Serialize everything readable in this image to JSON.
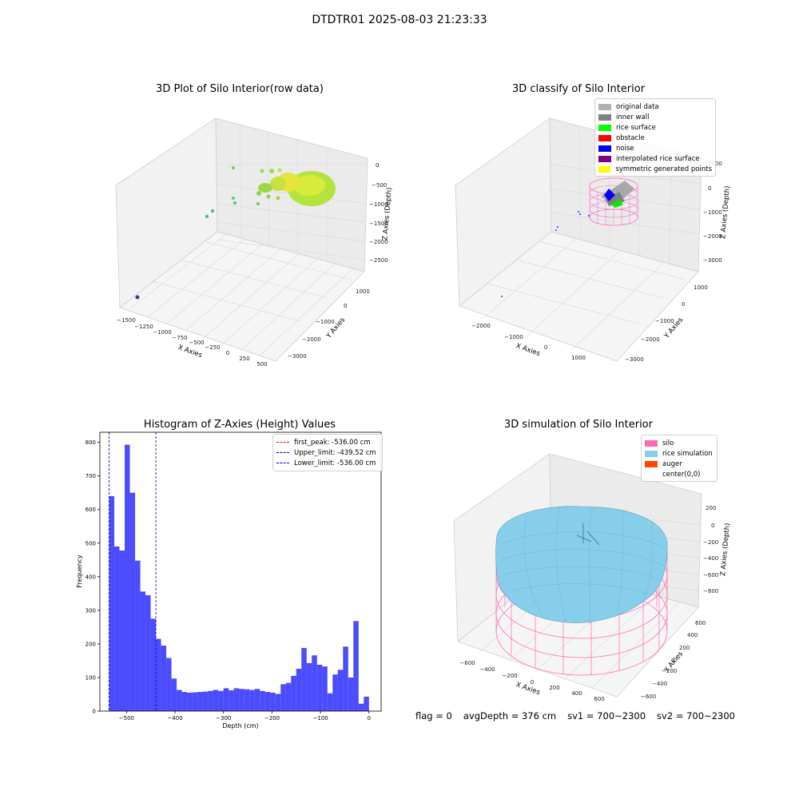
{
  "figure": {
    "title": "DTDTR01 2025-08-03 21:23:33"
  },
  "panels": {
    "raw": {
      "title": "3D Plot of Silo Interior(row data)",
      "xlabel": "X Axies",
      "ylabel": "Y Axies",
      "zlabel": "Z Axies (Depth)",
      "x_ticks": [
        "−1500",
        "−1250",
        "−1000",
        "−750",
        "−500",
        "−250",
        "0",
        "250",
        "500"
      ],
      "y_ticks": [
        "1000",
        "0",
        "−1000",
        "−2000",
        "−3000"
      ],
      "z_ticks": [
        "0",
        "−500",
        "−1000",
        "−1500",
        "−2000",
        "−2500"
      ]
    },
    "classify": {
      "title": "3D classify of Silo Interior",
      "xlabel": "X Axies",
      "ylabel": "Y Axies",
      "zlabel": "Z Axies (Depth)",
      "x_ticks": [
        "−2000",
        "−1000",
        "0",
        "1000"
      ],
      "y_ticks": [
        "1000",
        "0",
        "−1000",
        "−2000",
        "−3000"
      ],
      "z_ticks": [
        "1000",
        "0",
        "−1000",
        "−2000",
        "−3000"
      ],
      "legend": [
        {
          "label": "original data",
          "color": "#b0b0b0"
        },
        {
          "label": "inner wall",
          "color": "#808080"
        },
        {
          "label": "rice surface",
          "color": "#00ff00"
        },
        {
          "label": "obstacle",
          "color": "#ff0000"
        },
        {
          "label": "noise",
          "color": "#0000ff"
        },
        {
          "label": "interpolated rice surface",
          "color": "#800080"
        },
        {
          "label": "symmetric generated points",
          "color": "#ffff00"
        }
      ]
    },
    "simulation": {
      "title": "3D simulation of Silo Interior",
      "xlabel": "X Axies",
      "ylabel": "Y Axies",
      "zlabel": "Z Axies (Depth)",
      "x_ticks": [
        "−600",
        "−400",
        "−200",
        "0",
        "200",
        "400",
        "600"
      ],
      "y_ticks": [
        "600",
        "400",
        "200",
        "0",
        "−200",
        "−400",
        "−600"
      ],
      "z_ticks": [
        "200",
        "0",
        "−200",
        "−400",
        "−600",
        "−800"
      ],
      "legend": [
        {
          "label": "silo",
          "color": "#ff69b4"
        },
        {
          "label": "rice simulation",
          "color": "#87ceeb"
        },
        {
          "label": "auger",
          "color": "#ff4500"
        },
        {
          "label": "center(0,0)",
          "color": ""
        }
      ]
    }
  },
  "footer": {
    "flag": "flag = 0",
    "avg_depth": "avgDepth = 376 cm",
    "sv1": "sv1 = 700~2300",
    "sv2": "sv2 = 700~2300"
  },
  "chart_data": {
    "type": "bar",
    "title": "Histogram of Z-Axies (Height) Values",
    "xlabel": "Depth (cm)",
    "ylabel": "Frequency",
    "xlim": [
      -555,
      25
    ],
    "ylim": [
      0,
      830
    ],
    "x_ticks": [
      -500,
      -400,
      -300,
      -200,
      -100,
      0
    ],
    "x_tick_labels": [
      "−500",
      "−400",
      "−300",
      "−200",
      "−100",
      "0"
    ],
    "y_ticks": [
      0,
      100,
      200,
      300,
      400,
      500,
      600,
      700,
      800
    ],
    "bin_start": -536,
    "bin_width": 10.72,
    "bin_color": "#0000ff",
    "bin_alpha": 0.7,
    "counts": [
      640,
      490,
      478,
      793,
      650,
      448,
      356,
      345,
      275,
      215,
      195,
      158,
      97,
      63,
      57,
      55,
      56,
      57,
      58,
      60,
      63,
      60,
      68,
      62,
      68,
      66,
      65,
      63,
      66,
      60,
      57,
      55,
      51,
      80,
      84,
      105,
      126,
      188,
      143,
      166,
      138,
      133,
      53,
      109,
      123,
      192,
      100,
      268,
      22,
      43
    ],
    "vlines": [
      {
        "label": "first_peak: -536.00 cm",
        "x": -536.0,
        "color": "#ff0000"
      },
      {
        "label": "Upper_limit: -439.52 cm",
        "x": -439.52,
        "color": "#0000aa"
      },
      {
        "label": "Lower_limit: -536.00 cm",
        "x": -536.0,
        "color": "#0000ff"
      }
    ],
    "legend_position": "upper right"
  }
}
